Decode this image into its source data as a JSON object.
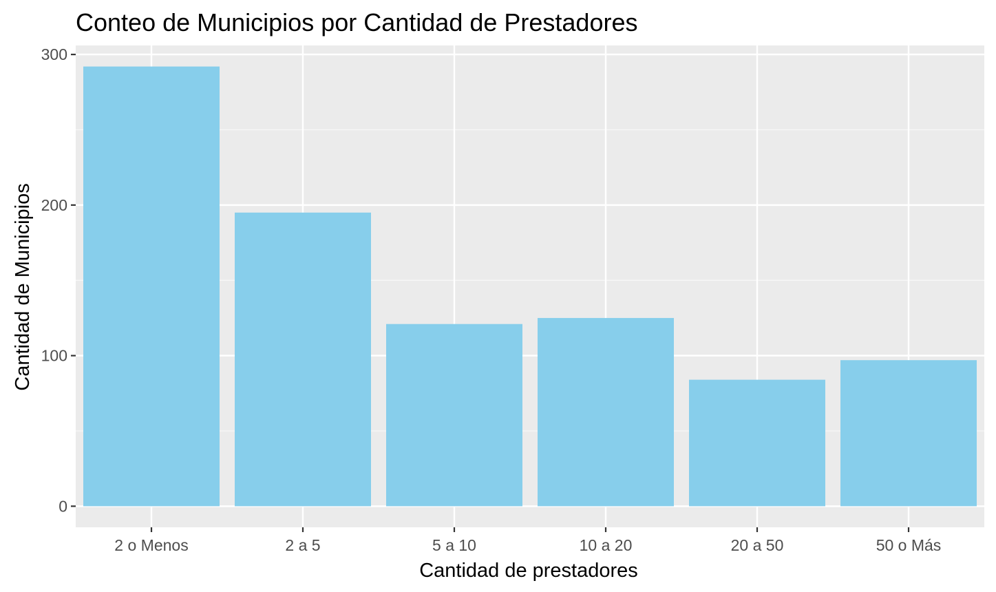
{
  "colors": {
    "panel": "#ebebeb",
    "grid_major": "#ffffff",
    "grid_minor": "#f7f7f7",
    "bar_fill": "#87ceeb",
    "tick_mark": "#333333",
    "tick_text": "#4d4d4d",
    "title_text": "#000000"
  },
  "chart_data": {
    "type": "bar",
    "title": "Conteo de Municipios por Cantidad de Prestadores",
    "xlabel": "Cantidad de prestadores",
    "ylabel": "Cantidad de Municipios",
    "categories": [
      "2 o Menos",
      "2 a 5",
      "5 a 10",
      "10 a 20",
      "20 a 50",
      "50 o Más"
    ],
    "values": [
      292,
      195,
      121,
      125,
      84,
      97
    ],
    "ylim": [
      -14,
      306
    ],
    "yticks": [
      0,
      100,
      200,
      300
    ],
    "grid": true,
    "legend": "none"
  }
}
